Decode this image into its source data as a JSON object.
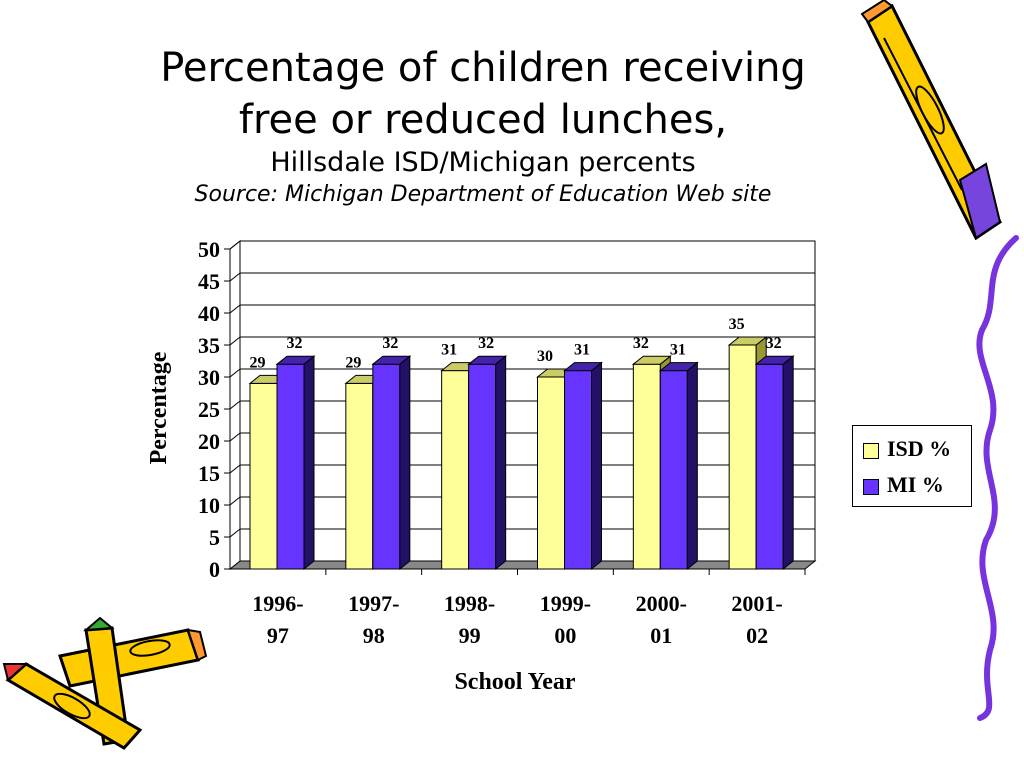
{
  "header": {
    "title_line1": "Percentage of children receiving",
    "title_line2": "free or reduced lunches,",
    "subtitle": "Hillsdale ISD/Michigan percents",
    "source": "Source: Michigan Department of Education Web site"
  },
  "chart_data": {
    "type": "bar",
    "categories": [
      "1996-97",
      "1997-98",
      "1998-99",
      "1999-00",
      "2000-01",
      "2001-02"
    ],
    "category_lines": [
      [
        "1996-",
        "97"
      ],
      [
        "1997-",
        "98"
      ],
      [
        "1998-",
        "99"
      ],
      [
        "1999-",
        "00"
      ],
      [
        "2000-",
        "01"
      ],
      [
        "2001-",
        "02"
      ]
    ],
    "series": [
      {
        "name": "ISD %",
        "values": [
          29,
          29,
          31,
          30,
          32,
          35
        ],
        "color": "#ffff99"
      },
      {
        "name": "MI %",
        "values": [
          32,
          32,
          32,
          31,
          31,
          32
        ],
        "color": "#6633ff"
      }
    ],
    "xlabel": "School Year",
    "ylabel": "Percentage",
    "ylim": [
      0,
      50
    ],
    "yticks": [
      "0",
      "5",
      "10",
      "15",
      "20",
      "25",
      "30",
      "35",
      "40",
      "45",
      "50"
    ],
    "grid": true,
    "legend_position": "right",
    "style": "3d"
  }
}
